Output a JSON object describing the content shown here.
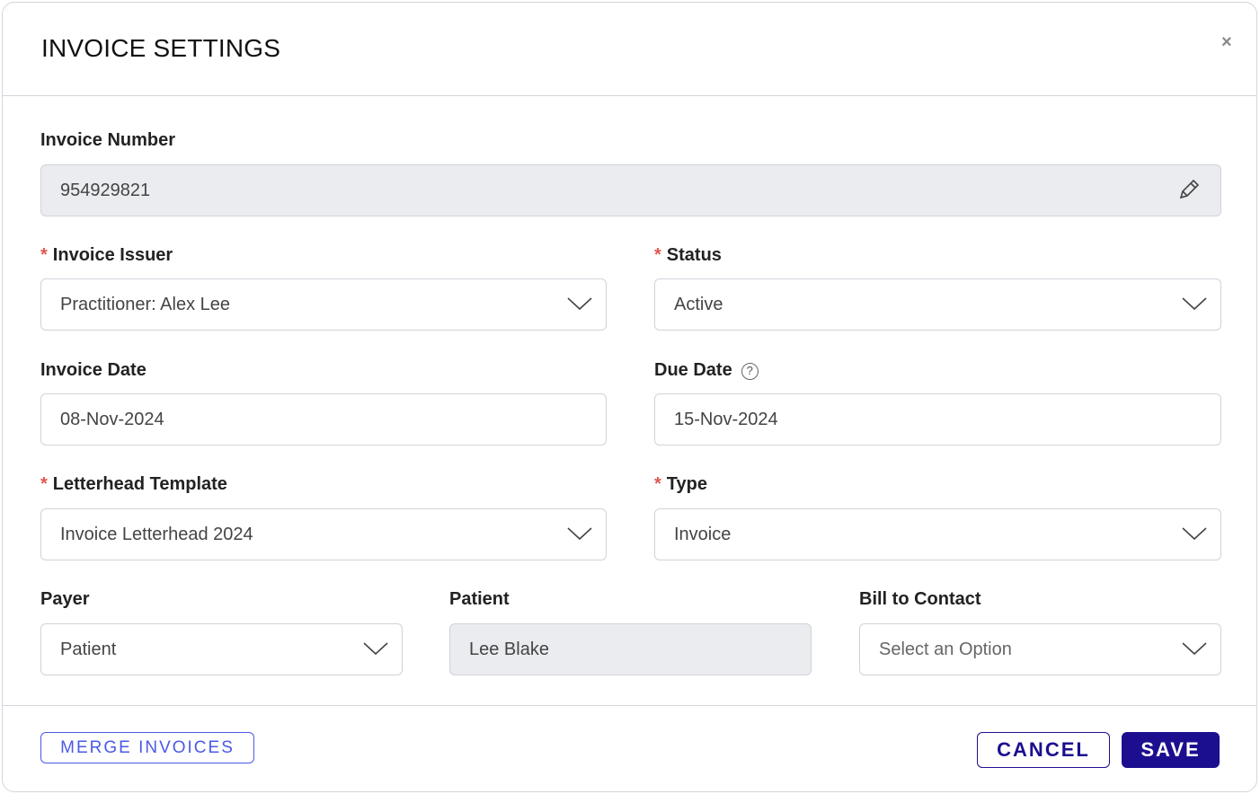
{
  "title": "INVOICE SETTINGS",
  "close_label": "×",
  "invoice_number": {
    "label": "Invoice Number",
    "value": "954929821",
    "icon": "pencil-icon"
  },
  "invoice_issuer": {
    "label": "Invoice Issuer",
    "required": "*",
    "value": "Practitioner: Alex Lee"
  },
  "status": {
    "label": "Status",
    "required": "*",
    "value": "Active"
  },
  "invoice_date": {
    "label": "Invoice Date",
    "value": "08-Nov-2024"
  },
  "due_date": {
    "label": "Due Date",
    "help": "?",
    "value": "15-Nov-2024"
  },
  "letterhead": {
    "label": "Letterhead Template",
    "required": "*",
    "value": "Invoice Letterhead 2024"
  },
  "type": {
    "label": "Type",
    "required": "*",
    "value": "Invoice"
  },
  "payer": {
    "label": "Payer",
    "value": "Patient"
  },
  "patient": {
    "label": "Patient",
    "value": "Lee Blake"
  },
  "bill_to": {
    "label": "Bill to Contact",
    "placeholder": "Select an Option"
  },
  "buttons": {
    "merge": "MERGE INVOICES",
    "cancel": "CANCEL",
    "save": "SAVE"
  },
  "colors": {
    "primary": "#1c0f8f",
    "merge": "#4a5ae8",
    "required": "#e0574f"
  }
}
